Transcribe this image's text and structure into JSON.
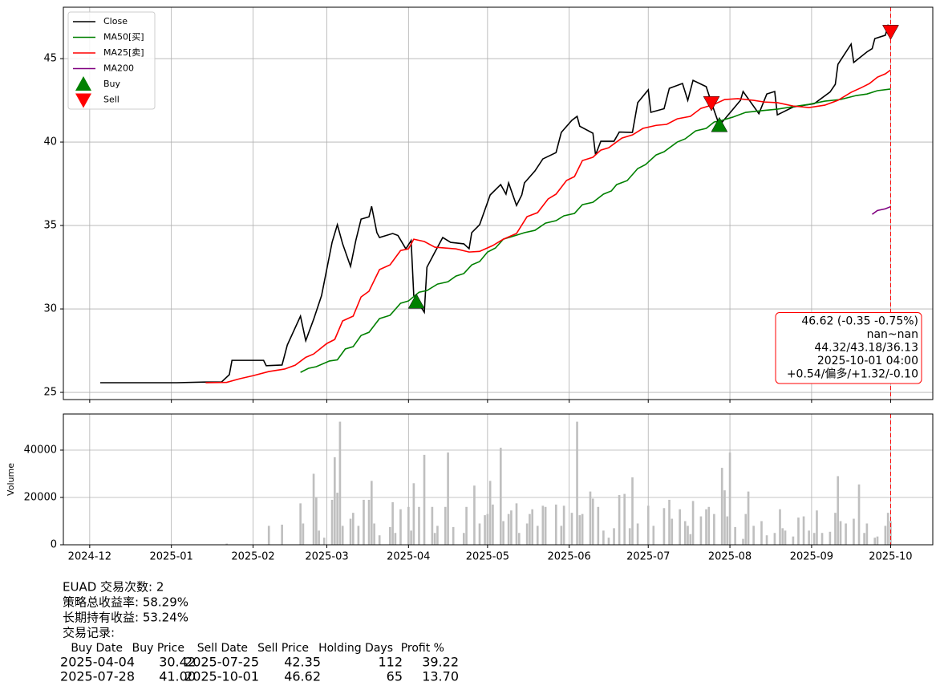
{
  "chart_data": [
    {
      "type": "line",
      "xlim": [
        "2024-11-21",
        "2025-10-17"
      ],
      "xticks": [
        "2024-12-01",
        "2025-01-01",
        "2025-02-01",
        "2025-03-01",
        "2025-04-01",
        "2025-05-01",
        "2025-06-01",
        "2025-07-01",
        "2025-08-01",
        "2025-09-01",
        "2025-10-01"
      ],
      "ylim": [
        24.57,
        48.08
      ],
      "yticks": [
        25,
        30,
        35,
        40,
        45
      ],
      "grid": true,
      "legend": "upper left",
      "series": [
        {
          "name": "Close",
          "color": "#000000",
          "x": [
            "2024-12-05",
            "2025-01-03",
            "2025-01-14",
            "2025-01-20",
            "2025-01-23",
            "2025-01-24",
            "2025-02-05",
            "2025-02-06",
            "2025-02-12",
            "2025-02-14",
            "2025-02-19",
            "2025-02-21",
            "2025-02-24",
            "2025-02-27",
            "2025-03-03",
            "2025-03-05",
            "2025-03-07",
            "2025-03-10",
            "2025-03-12",
            "2025-03-14",
            "2025-03-17",
            "2025-03-18",
            "2025-03-20",
            "2025-03-21",
            "2025-03-26",
            "2025-03-28",
            "2025-03-31",
            "2025-04-02",
            "2025-04-03",
            "2025-04-07",
            "2025-04-08",
            "2025-04-11",
            "2025-04-14",
            "2025-04-17",
            "2025-04-22",
            "2025-04-24",
            "2025-04-25",
            "2025-04-28",
            "2025-05-02",
            "2025-05-06",
            "2025-05-08",
            "2025-05-09",
            "2025-05-12",
            "2025-05-14",
            "2025-05-15",
            "2025-05-19",
            "2025-05-22",
            "2025-05-27",
            "2025-05-29",
            "2025-06-02",
            "2025-06-04",
            "2025-06-05",
            "2025-06-10",
            "2025-06-11",
            "2025-06-13",
            "2025-06-18",
            "2025-06-20",
            "2025-06-25",
            "2025-06-27",
            "2025-07-01",
            "2025-07-02",
            "2025-07-07",
            "2025-07-09",
            "2025-07-14",
            "2025-07-16",
            "2025-07-18",
            "2025-07-23",
            "2025-07-25",
            "2025-07-28",
            "2025-07-31",
            "2025-08-05",
            "2025-08-06",
            "2025-08-12",
            "2025-08-15",
            "2025-08-18",
            "2025-08-19",
            "2025-08-25",
            "2025-09-02",
            "2025-09-08",
            "2025-09-10",
            "2025-09-11",
            "2025-09-16",
            "2025-09-17",
            "2025-09-22",
            "2025-09-24",
            "2025-09-25",
            "2025-09-29",
            "2025-09-30",
            "2025-10-01"
          ],
          "values": [
            25.58,
            25.58,
            25.62,
            25.62,
            26.06,
            26.92,
            26.92,
            26.6,
            26.64,
            27.84,
            29.57,
            28.1,
            29.38,
            30.8,
            33.99,
            35.05,
            33.9,
            32.55,
            34.1,
            35.38,
            35.52,
            36.15,
            34.57,
            34.28,
            34.52,
            34.4,
            33.6,
            34.1,
            30.8,
            29.8,
            32.5,
            33.4,
            34.28,
            33.99,
            33.9,
            33.61,
            34.57,
            35.05,
            36.83,
            37.45,
            36.88,
            37.55,
            36.2,
            36.83,
            37.55,
            38.27,
            38.99,
            39.37,
            40.58,
            41.3,
            41.54,
            40.95,
            40.53,
            39.23,
            40.05,
            40.05,
            40.6,
            40.58,
            42.36,
            43.13,
            41.78,
            42.0,
            43.22,
            43.51,
            42.5,
            43.7,
            43.32,
            42.35,
            41.0,
            41.56,
            42.5,
            43.03,
            41.7,
            42.88,
            43.03,
            41.63,
            42.1,
            42.3,
            43.0,
            43.46,
            44.66,
            45.87,
            44.77,
            45.4,
            45.6,
            46.2,
            46.4,
            46.97,
            46.62
          ]
        },
        {
          "name": "MA50[买]",
          "color": "#008000",
          "x": [
            "2025-02-19",
            "2025-02-22",
            "2025-02-25",
            "2025-03-02",
            "2025-03-05",
            "2025-03-08",
            "2025-03-11",
            "2025-03-14",
            "2025-03-17",
            "2025-03-21",
            "2025-03-25",
            "2025-03-29",
            "2025-04-01",
            "2025-04-05",
            "2025-04-08",
            "2025-04-12",
            "2025-04-16",
            "2025-04-19",
            "2025-04-22",
            "2025-04-25",
            "2025-04-28",
            "2025-05-01",
            "2025-05-04",
            "2025-05-07",
            "2025-05-12",
            "2025-05-15",
            "2025-05-19",
            "2025-05-23",
            "2025-05-27",
            "2025-05-30",
            "2025-06-03",
            "2025-06-06",
            "2025-06-10",
            "2025-06-14",
            "2025-06-17",
            "2025-06-19",
            "2025-06-23",
            "2025-06-27",
            "2025-06-30",
            "2025-07-04",
            "2025-07-07",
            "2025-07-12",
            "2025-07-15",
            "2025-07-19",
            "2025-07-23",
            "2025-07-26",
            "2025-07-29",
            "2025-08-02",
            "2025-08-07",
            "2025-08-13",
            "2025-08-19",
            "2025-08-25",
            "2025-08-31",
            "2025-09-06",
            "2025-09-12",
            "2025-09-18",
            "2025-09-22",
            "2025-09-26",
            "2025-10-01"
          ],
          "values": [
            26.2,
            26.44,
            26.54,
            26.88,
            26.95,
            27.6,
            27.74,
            28.41,
            28.6,
            29.42,
            29.62,
            30.34,
            30.48,
            31.0,
            31.1,
            31.49,
            31.63,
            31.97,
            32.12,
            32.64,
            32.84,
            33.41,
            33.65,
            34.18,
            34.42,
            34.57,
            34.71,
            35.14,
            35.29,
            35.58,
            35.72,
            36.25,
            36.39,
            36.88,
            37.07,
            37.45,
            37.69,
            38.41,
            38.65,
            39.23,
            39.42,
            40.0,
            40.19,
            40.67,
            40.82,
            41.2,
            41.3,
            41.49,
            41.78,
            41.88,
            41.97,
            42.12,
            42.26,
            42.45,
            42.55,
            42.79,
            42.88,
            43.08,
            43.18
          ]
        },
        {
          "name": "MA25[卖]",
          "color": "#ff0000",
          "x": [
            "2025-01-14",
            "2025-01-22",
            "2025-01-27",
            "2025-02-01",
            "2025-02-07",
            "2025-02-13",
            "2025-02-17",
            "2025-02-21",
            "2025-02-24",
            "2025-03-01",
            "2025-03-04",
            "2025-03-07",
            "2025-03-11",
            "2025-03-14",
            "2025-03-17",
            "2025-03-21",
            "2025-03-25",
            "2025-03-29",
            "2025-04-01",
            "2025-04-03",
            "2025-04-07",
            "2025-04-11",
            "2025-04-19",
            "2025-04-24",
            "2025-04-28",
            "2025-05-03",
            "2025-05-07",
            "2025-05-12",
            "2025-05-16",
            "2025-05-20",
            "2025-05-24",
            "2025-05-27",
            "2025-05-31",
            "2025-06-03",
            "2025-06-06",
            "2025-06-10",
            "2025-06-13",
            "2025-06-16",
            "2025-06-21",
            "2025-06-25",
            "2025-06-29",
            "2025-07-04",
            "2025-07-08",
            "2025-07-12",
            "2025-07-17",
            "2025-07-21",
            "2025-07-26",
            "2025-07-30",
            "2025-08-04",
            "2025-08-10",
            "2025-08-14",
            "2025-08-19",
            "2025-08-25",
            "2025-08-31",
            "2025-09-06",
            "2025-09-11",
            "2025-09-16",
            "2025-09-20",
            "2025-09-23",
            "2025-09-26",
            "2025-09-29",
            "2025-10-01"
          ],
          "values": [
            25.58,
            25.6,
            25.82,
            26.0,
            26.25,
            26.4,
            26.63,
            27.1,
            27.3,
            27.93,
            28.17,
            29.28,
            29.57,
            30.72,
            31.06,
            32.36,
            32.64,
            33.5,
            33.6,
            34.18,
            34.04,
            33.7,
            33.6,
            33.41,
            33.45,
            33.8,
            34.18,
            34.52,
            35.53,
            35.77,
            36.59,
            36.88,
            37.7,
            37.93,
            38.89,
            39.09,
            39.52,
            39.66,
            40.24,
            40.43,
            40.82,
            41.0,
            41.06,
            41.39,
            41.54,
            42.02,
            42.26,
            42.55,
            42.6,
            42.5,
            42.4,
            42.36,
            42.16,
            42.07,
            42.21,
            42.5,
            42.98,
            43.27,
            43.51,
            43.89,
            44.09,
            44.32
          ]
        },
        {
          "name": "MA200",
          "color": "#800080",
          "x": [
            "2025-09-24",
            "2025-09-26",
            "2025-09-29",
            "2025-10-01"
          ],
          "values": [
            35.67,
            35.9,
            36.0,
            36.13
          ]
        }
      ],
      "markers": [
        {
          "name": "Buy",
          "color": "#008000",
          "marker": "triangle-up",
          "x": [
            "2025-04-04",
            "2025-07-28"
          ],
          "values": [
            30.42,
            41.0
          ]
        },
        {
          "name": "Sell",
          "color": "#ff0000",
          "marker": "triangle-down",
          "x": [
            "2025-07-25",
            "2025-10-01"
          ],
          "values": [
            42.35,
            46.62
          ]
        }
      ],
      "vline": {
        "x": "2025-10-01",
        "color": "#ff0000"
      },
      "annotation": {
        "color": "#ff0000",
        "lines": [
          "46.62 (-0.35 -0.75%)",
          "nan~nan",
          "44.32/43.18/36.13",
          "2025-10-01 04:00",
          "+0.54/偏多/+1.32/-0.10"
        ]
      }
    },
    {
      "type": "bar",
      "ylabel": "Volume",
      "color": "#bfbfbf",
      "xlim": [
        "2024-11-21",
        "2025-10-17"
      ],
      "xticks": [
        {
          "value": "2024-12-01",
          "label": "2024-12"
        },
        {
          "value": "2025-01-01",
          "label": "2025-01"
        },
        {
          "value": "2025-02-01",
          "label": "2025-02"
        },
        {
          "value": "2025-03-01",
          "label": "2025-03"
        },
        {
          "value": "2025-04-01",
          "label": "2025-04"
        },
        {
          "value": "2025-05-01",
          "label": "2025-05"
        },
        {
          "value": "2025-06-01",
          "label": "2025-06"
        },
        {
          "value": "2025-07-01",
          "label": "2025-07"
        },
        {
          "value": "2025-08-01",
          "label": "2025-08"
        },
        {
          "value": "2025-09-01",
          "label": "2025-09"
        },
        {
          "value": "2025-10-01",
          "label": "2025-10"
        }
      ],
      "ylim": [
        0,
        55250
      ],
      "yticks": [
        0,
        20000,
        40000
      ],
      "grid": true,
      "vline": {
        "x": "2025-10-01",
        "color": "#ff0000"
      },
      "x": [
        "2025-01-22",
        "2025-02-07",
        "2025-02-12",
        "2025-02-19",
        "2025-02-20",
        "2025-02-24",
        "2025-02-25",
        "2025-02-26",
        "2025-02-28",
        "2025-03-03",
        "2025-03-04",
        "2025-03-05",
        "2025-03-06",
        "2025-03-07",
        "2025-03-10",
        "2025-03-11",
        "2025-03-13",
        "2025-03-15",
        "2025-03-17",
        "2025-03-18",
        "2025-03-19",
        "2025-03-21",
        "2025-03-25",
        "2025-03-26",
        "2025-03-27",
        "2025-03-29",
        "2025-04-01",
        "2025-04-02",
        "2025-04-03",
        "2025-04-05",
        "2025-04-07",
        "2025-04-10",
        "2025-04-11",
        "2025-04-12",
        "2025-04-15",
        "2025-04-16",
        "2025-04-18",
        "2025-04-22",
        "2025-04-23",
        "2025-04-26",
        "2025-04-28",
        "2025-04-30",
        "2025-05-01",
        "2025-05-02",
        "2025-05-03",
        "2025-05-06",
        "2025-05-07",
        "2025-05-09",
        "2025-05-10",
        "2025-05-12",
        "2025-05-13",
        "2025-05-16",
        "2025-05-17",
        "2025-05-18",
        "2025-05-20",
        "2025-05-22",
        "2025-05-23",
        "2025-05-27",
        "2025-05-29",
        "2025-05-30",
        "2025-06-02",
        "2025-06-04",
        "2025-06-05",
        "2025-06-06",
        "2025-06-09",
        "2025-06-10",
        "2025-06-12",
        "2025-06-14",
        "2025-06-16",
        "2025-06-18",
        "2025-06-20",
        "2025-06-22",
        "2025-06-24",
        "2025-06-25",
        "2025-06-27",
        "2025-07-01",
        "2025-07-03",
        "2025-07-07",
        "2025-07-09",
        "2025-07-10",
        "2025-07-13",
        "2025-07-15",
        "2025-07-16",
        "2025-07-17",
        "2025-07-18",
        "2025-07-21",
        "2025-07-23",
        "2025-07-24",
        "2025-07-26",
        "2025-07-29",
        "2025-07-30",
        "2025-07-31",
        "2025-08-01",
        "2025-08-03",
        "2025-08-06",
        "2025-08-07",
        "2025-08-08",
        "2025-08-10",
        "2025-08-13",
        "2025-08-15",
        "2025-08-18",
        "2025-08-20",
        "2025-08-21",
        "2025-08-22",
        "2025-08-25",
        "2025-08-27",
        "2025-08-29",
        "2025-08-31",
        "2025-09-02",
        "2025-09-03",
        "2025-09-05",
        "2025-09-08",
        "2025-09-10",
        "2025-09-11",
        "2025-09-12",
        "2025-09-14",
        "2025-09-17",
        "2025-09-19",
        "2025-09-21",
        "2025-09-22",
        "2025-09-25",
        "2025-09-26",
        "2025-09-29",
        "2025-09-30",
        "2025-10-01"
      ],
      "values": [
        500,
        8000,
        8500,
        17500,
        9000,
        30000,
        20000,
        6000,
        3000,
        19000,
        37000,
        22000,
        52000,
        8000,
        11000,
        13500,
        8000,
        19000,
        19000,
        27000,
        9000,
        4000,
        7500,
        18000,
        5000,
        15000,
        16000,
        6000,
        26000,
        16000,
        38000,
        16000,
        5000,
        8000,
        16000,
        39000,
        7500,
        5000,
        16000,
        25000,
        9000,
        12500,
        13000,
        27000,
        17000,
        41000,
        10000,
        13000,
        14500,
        17500,
        5000,
        9000,
        13000,
        15000,
        8000,
        16500,
        16000,
        17000,
        8000,
        16500,
        13500,
        52000,
        12500,
        13000,
        22500,
        19500,
        16000,
        6000,
        3000,
        7000,
        21000,
        21500,
        7000,
        28500,
        9000,
        16500,
        8000,
        15500,
        19000,
        11000,
        15000,
        10000,
        8000,
        4500,
        18500,
        12000,
        15000,
        16000,
        13000,
        32500,
        23000,
        12000,
        39000,
        7500,
        2500,
        13000,
        22500,
        8000,
        10000,
        4000,
        5000,
        15000,
        7000,
        6000,
        3500,
        11500,
        12000,
        6000,
        5000,
        14500,
        5000,
        5500,
        13500,
        29000,
        10000,
        9000,
        11000,
        25500,
        5000,
        9000,
        3000,
        3500,
        8000,
        13500,
        10000
      ]
    }
  ],
  "summary": {
    "lines": [
      "EUAD 交易次数: 2",
      "策略总收益率: 58.29%",
      "长期持有收益: 53.24%",
      "交易记录:"
    ],
    "table": {
      "columns": [
        "Buy Date",
        "Buy Price",
        "Sell Date",
        "Sell Price",
        "Holding Days",
        "Profit %"
      ],
      "rows": [
        [
          "2025-04-04",
          "30.42",
          "2025-07-25",
          "42.35",
          "112",
          "39.22"
        ],
        [
          "2025-07-28",
          "41.00",
          "2025-10-01",
          "46.62",
          "65",
          "13.70"
        ]
      ]
    }
  }
}
